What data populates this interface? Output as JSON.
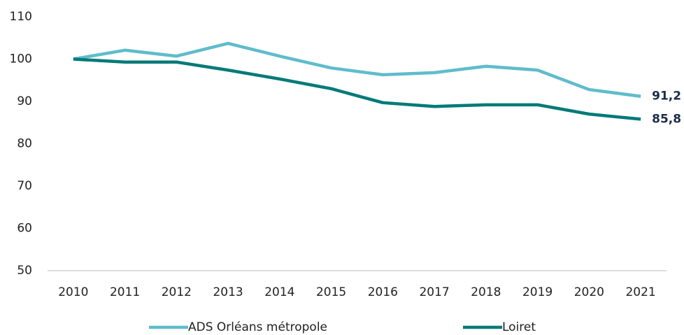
{
  "chart_data": {
    "type": "line",
    "categories": [
      "2010",
      "2011",
      "2012",
      "2013",
      "2014",
      "2015",
      "2016",
      "2017",
      "2018",
      "2019",
      "2020",
      "2021"
    ],
    "series": [
      {
        "name": "ADS Orléans métropole",
        "color": "#5fbccc",
        "values": [
          100,
          102.1,
          100.7,
          103.7,
          100.7,
          97.9,
          96.3,
          96.8,
          98.3,
          97.4,
          92.8,
          91.2
        ],
        "value_labels": [
          null,
          null,
          null,
          null,
          null,
          null,
          null,
          null,
          null,
          null,
          null,
          "91,2"
        ]
      },
      {
        "name": "Loiret",
        "color": "#007a78",
        "values": [
          100,
          99.3,
          99.3,
          97.4,
          95.3,
          93,
          89.7,
          88.8,
          89.2,
          89.2,
          87,
          85.8
        ],
        "value_labels": [
          null,
          null,
          null,
          null,
          null,
          null,
          null,
          null,
          null,
          null,
          null,
          "85,8"
        ]
      }
    ],
    "ylim": [
      50,
      110
    ],
    "yticks": [
      50,
      60,
      70,
      80,
      90,
      100,
      110
    ],
    "grid": false,
    "legend": "bottom"
  }
}
